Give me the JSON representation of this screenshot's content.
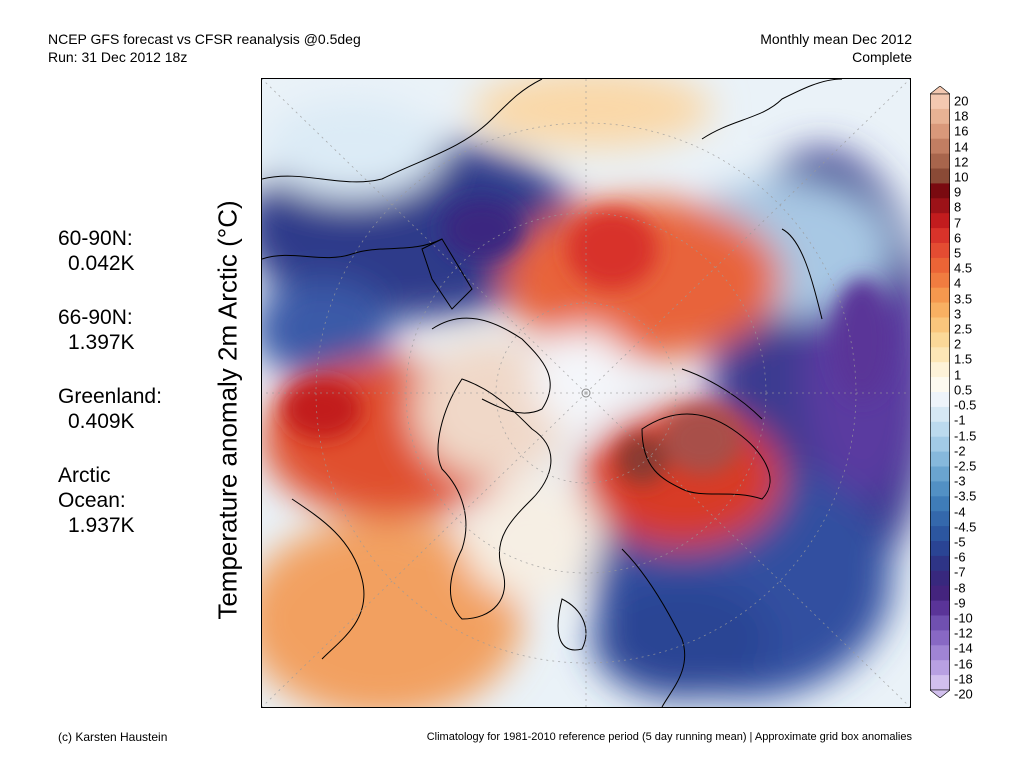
{
  "header": {
    "line1": "NCEP GFS forecast vs CFSR reanalysis @0.5deg",
    "line2": "Run: 31 Dec 2012 18z",
    "right1": "Monthly mean Dec 2012",
    "right2": "Complete"
  },
  "stats": [
    {
      "label": "60-90N:",
      "value": "0.042K"
    },
    {
      "label": "66-90N:",
      "value": "1.397K"
    },
    {
      "label": "Greenland:",
      "value": "0.409K"
    },
    {
      "label": "Arctic\nOcean:",
      "value": "1.937K"
    }
  ],
  "map": {
    "ylabel": "Temperature anomaly 2m Arctic (°C)"
  },
  "colorbar": {
    "labels": [
      "20",
      "18",
      "16",
      "14",
      "12",
      "10",
      "9",
      "8",
      "7",
      "6",
      "5",
      "4.5",
      "4",
      "3.5",
      "3",
      "2.5",
      "2",
      "1.5",
      "1",
      "0.5",
      "-0.5",
      "-1",
      "-1.5",
      "-2",
      "-2.5",
      "-3",
      "-3.5",
      "-4",
      "-4.5",
      "-5",
      "-6",
      "-7",
      "-8",
      "-9",
      "-10",
      "-12",
      "-14",
      "-16",
      "-18",
      "-20"
    ],
    "colors": [
      "#f4c8b0",
      "#e8b294",
      "#d9987a",
      "#c27e62",
      "#a8654c",
      "#8a4a36",
      "#7a0a10",
      "#9c1218",
      "#c21c1e",
      "#d8332a",
      "#e44c32",
      "#eb6436",
      "#f07c40",
      "#f5984e",
      "#f8b062",
      "#fac67c",
      "#fbd898",
      "#fce6b6",
      "#fdf2d8",
      "#fdfaf0",
      "#eef4fa",
      "#d6e8f4",
      "#bcdaee",
      "#a2cae6",
      "#86b8dc",
      "#6aa4d0",
      "#5290c4",
      "#3f7cb8",
      "#3468ac",
      "#2c56a0",
      "#2a4494",
      "#2e3486",
      "#38287e",
      "#44247e",
      "#5a3498",
      "#7050b0",
      "#8868c4",
      "#a084d4",
      "#b8a0e2",
      "#d2c0ee"
    ]
  },
  "footer": {
    "left": "(c) Karsten Haustein",
    "right": "Climatology for 1981-2010 reference period (5 day running mean) | Approximate grid box anomalies"
  }
}
